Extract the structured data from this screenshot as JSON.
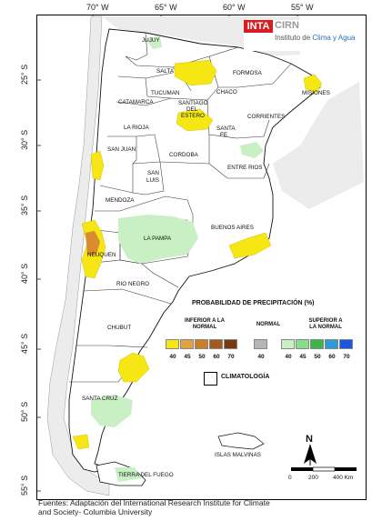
{
  "longitude_labels": [
    "70° W",
    "65° W",
    "60° W",
    "55° W"
  ],
  "latitude_labels": [
    "25° S",
    "30° S",
    "35° S",
    "40° S",
    "45° S",
    "50° S",
    "55° S"
  ],
  "logo": {
    "inta": "INTA",
    "cirn": "CIRN",
    "institute_prefix": "Instituto de ",
    "institute_highlight": "Clima y Agua"
  },
  "provinces": [
    "JUJUY",
    "SALTA",
    "FORMOSA",
    "MISIONES",
    "TUCUMAN",
    "CATAMARCA",
    "SANTIAGO",
    "DEL",
    "ESTERO",
    "CHACO",
    "CORRIENTES",
    "LA RIOJA",
    "SANTA",
    "FE",
    "SAN JUAN",
    "CORDOBA",
    "ENTRE RIOS",
    "SAN",
    "LUIS",
    "MENDOZA",
    "BUENOS AIRES",
    "LA PAMPA",
    "NEUQUEN",
    "RIO NEGRO",
    "CHUBUT",
    "SANTA CRUZ",
    "ISLAS MALVINAS",
    "TIERRA DEL FUEGO"
  ],
  "legend": {
    "title": "PROBABILIDAD DE PRECIPITACIÓN (%)",
    "below_label": "INFERIOR A LA NORMAL",
    "normal_label": "NORMAL",
    "above_label": "SUPERIOR A LA NORMAL",
    "below_values": [
      "40",
      "45",
      "50",
      "60",
      "70"
    ],
    "normal_values": [
      "40"
    ],
    "above_values": [
      "40",
      "45",
      "50",
      "60",
      "70"
    ],
    "below_colors": [
      "#f5e614",
      "#e0a341",
      "#c97e2a",
      "#a45a1c",
      "#7a3a10"
    ],
    "normal_colors": [
      "#b5b5b5"
    ],
    "above_colors": [
      "#c9f0c4",
      "#88dc8a",
      "#3bb54a",
      "#2e9ad6",
      "#1b56e0"
    ],
    "climatology_label": "CLIMATOLOGÍA"
  },
  "north_label": "N",
  "scale": {
    "labels": [
      "0",
      "200",
      "400 Km"
    ]
  },
  "footer": {
    "line1": "Fuentes: Adaptación del International Research Institute for Climate",
    "line2": "and Society- Columbia University"
  }
}
